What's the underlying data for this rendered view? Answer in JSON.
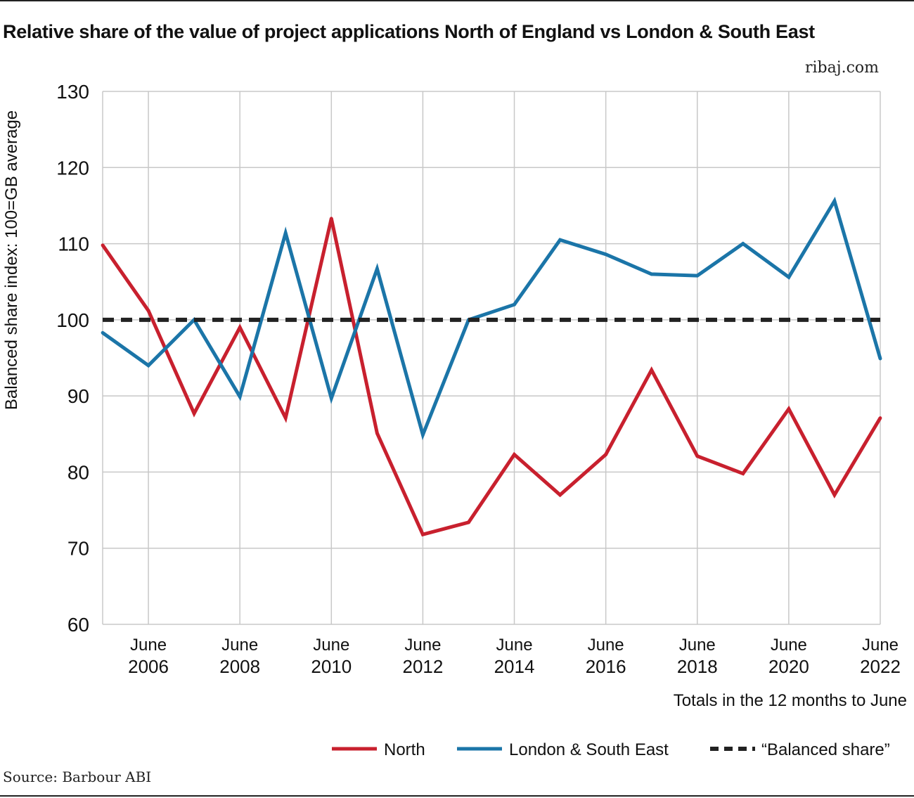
{
  "header": {
    "title": "Relative share of the value of project applications North of England vs London & South East",
    "brand": "ribaj.com"
  },
  "footer": {
    "source": "Source: Barbour ABI"
  },
  "chart_data": {
    "type": "line",
    "title": "Relative share of the value of project applications North of England vs London & South East",
    "ylabel": "Balanced share index: 100=GB average",
    "xlabel": "Totals in the 12 months to June",
    "ylim": [
      60,
      130
    ],
    "yticks": [
      60,
      70,
      80,
      90,
      100,
      110,
      120,
      130
    ],
    "grid": true,
    "legend_position": "bottom-right",
    "x": [
      2005,
      2006,
      2007,
      2008,
      2009,
      2010,
      2011,
      2012,
      2013,
      2014,
      2015,
      2016,
      2017,
      2018,
      2019,
      2020,
      2021,
      2022
    ],
    "xticks": [
      {
        "year": 2006,
        "line1": "June",
        "line2": "2006"
      },
      {
        "year": 2008,
        "line1": "June",
        "line2": "2008"
      },
      {
        "year": 2010,
        "line1": "June",
        "line2": "2010"
      },
      {
        "year": 2012,
        "line1": "June",
        "line2": "2012"
      },
      {
        "year": 2014,
        "line1": "June",
        "line2": "2014"
      },
      {
        "year": 2016,
        "line1": "June",
        "line2": "2016"
      },
      {
        "year": 2018,
        "line1": "June",
        "line2": "2018"
      },
      {
        "year": 2020,
        "line1": "June",
        "line2": "2020"
      },
      {
        "year": 2022,
        "line1": "June",
        "line2": "2022"
      }
    ],
    "series": [
      {
        "name": "North",
        "color": "#c8202e",
        "style": "solid",
        "values": [
          109.8,
          101.2,
          87.7,
          99.0,
          87.1,
          113.3,
          85.1,
          71.8,
          73.4,
          82.3,
          77.0,
          82.3,
          93.4,
          82.1,
          79.8,
          88.3,
          77.0,
          87.1
        ]
      },
      {
        "name": "London & South East",
        "color": "#1b75a8",
        "style": "solid",
        "values": [
          98.3,
          94.0,
          100.0,
          89.9,
          111.4,
          89.7,
          106.7,
          84.9,
          100.0,
          102.0,
          110.5,
          108.6,
          106.0,
          105.8,
          110.0,
          105.6,
          115.6,
          94.9
        ]
      },
      {
        "name": "“Balanced share”",
        "color": "#222222",
        "style": "dashed",
        "constant": 100
      }
    ]
  }
}
